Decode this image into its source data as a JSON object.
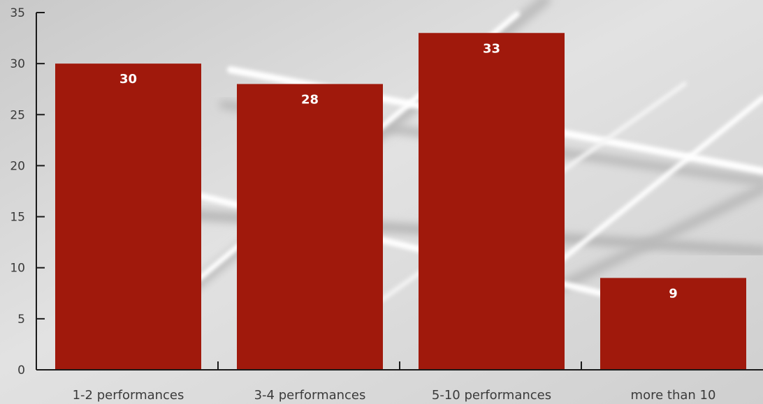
{
  "chart_data": {
    "type": "bar",
    "title": "",
    "xlabel": "",
    "ylabel": "",
    "categories": [
      "1-2 performances",
      "3-4 performances",
      "5-10 performances",
      "more than 10"
    ],
    "values": [
      30,
      28,
      33,
      9
    ],
    "data_labels": [
      "30",
      "28",
      "33",
      "9"
    ],
    "ylim": [
      0,
      35
    ],
    "yticks": [
      0,
      5,
      10,
      15,
      20,
      25,
      30,
      35
    ],
    "grid": false,
    "legend": "none",
    "colors": {
      "bar": "#a0190c",
      "axis": "#1a1a1a",
      "label": "#3a3a3a",
      "data_label": "#ffffff"
    }
  }
}
